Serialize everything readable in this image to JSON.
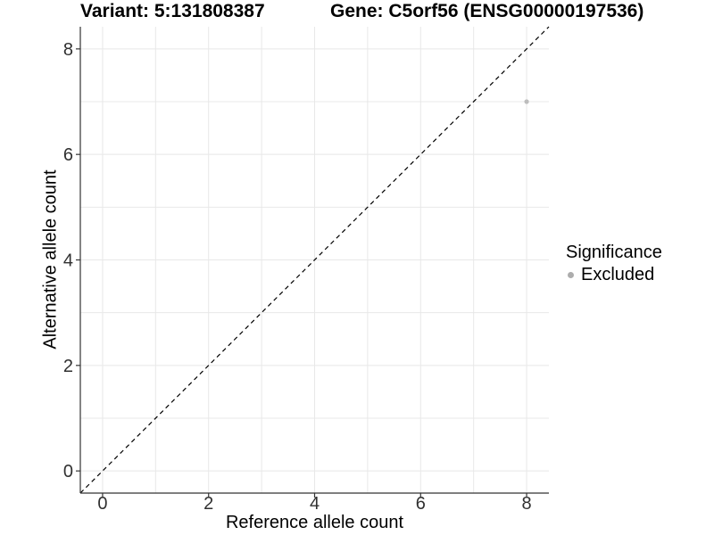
{
  "chart_data": {
    "type": "scatter",
    "title_left": "Variant: 5:131808387",
    "title_right": "Gene: C5orf56 (ENSG00000197536)",
    "xlabel": "Reference allele count",
    "ylabel": "Alternative allele count",
    "xlim": [
      -0.42,
      8.42
    ],
    "ylim": [
      -0.42,
      8.42
    ],
    "x_ticks": [
      0,
      2,
      4,
      6,
      8
    ],
    "y_ticks": [
      0,
      2,
      4,
      6,
      8
    ],
    "grid_values": [
      0,
      1,
      2,
      3,
      4,
      5,
      6,
      7,
      8
    ],
    "grid": true,
    "series": [
      {
        "name": "Excluded",
        "color": "#bdbdbd",
        "points": [
          {
            "x": 8,
            "y": 7
          }
        ]
      }
    ],
    "reference_line": {
      "kind": "identity-abline",
      "slope": 1,
      "intercept": 0,
      "style": "dashed",
      "color": "#000000"
    },
    "legend": {
      "title": "Significance",
      "position": "right",
      "items": [
        {
          "label": "Excluded",
          "color": "#adadad"
        }
      ]
    },
    "style": {
      "panel_background": "#ffffff",
      "gridline_color": "#e8e8e8",
      "axis_line_color": "#333333",
      "tick_label_color": "#303030",
      "tick_label_size": 20
    }
  }
}
